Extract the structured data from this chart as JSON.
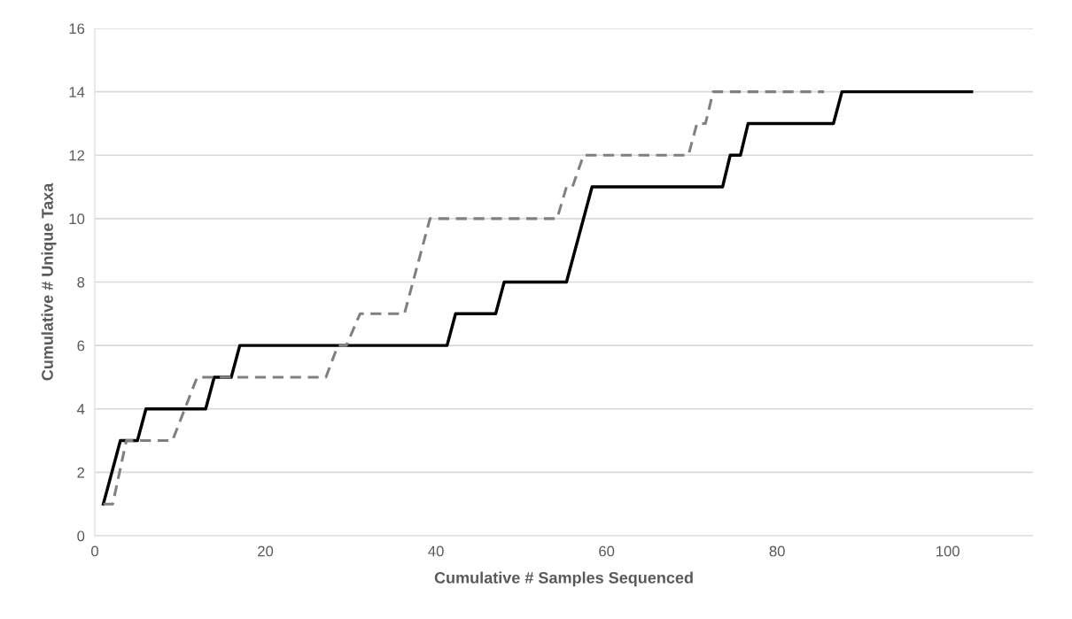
{
  "chart_data": {
    "type": "line",
    "xlabel": "Cumulative # Samples Sequenced",
    "ylabel": "Cumulative # Unique Taxa",
    "xlim": [
      0,
      110
    ],
    "xticks": [
      0,
      20,
      40,
      60,
      80,
      100
    ],
    "ylim": [
      0,
      16
    ],
    "yticks": [
      0,
      2,
      4,
      6,
      8,
      10,
      12,
      14,
      16
    ],
    "grid": "y",
    "legend": false,
    "series": [
      {
        "color": "#000000",
        "line_style": "solid",
        "x": [
          1,
          3,
          5,
          6,
          13,
          14,
          16,
          17,
          41.3,
          42.3,
          47,
          48,
          55.3,
          58.3,
          73.6,
          74.5,
          75.7,
          76.6,
          86.6,
          87.6,
          102.8
        ],
        "values": [
          1,
          3,
          3,
          4,
          4,
          5,
          5,
          6,
          6,
          7,
          7,
          8,
          8,
          11,
          11,
          12,
          12,
          13,
          13,
          14,
          14
        ]
      },
      {
        "color": "#808080",
        "line_style": "dashed",
        "x": [
          1,
          2.1,
          3.7,
          9.1,
          12,
          27.1,
          28.5,
          29.5,
          31.1,
          36.3,
          39.3,
          54.2,
          55.3,
          56,
          57.3,
          69.6,
          70.6,
          71.6,
          72.5,
          85.5
        ],
        "values": [
          1,
          1,
          3,
          3,
          5,
          5,
          6,
          6,
          7,
          7,
          10,
          10,
          11,
          11,
          12,
          12,
          13,
          13,
          14,
          14
        ]
      }
    ]
  }
}
